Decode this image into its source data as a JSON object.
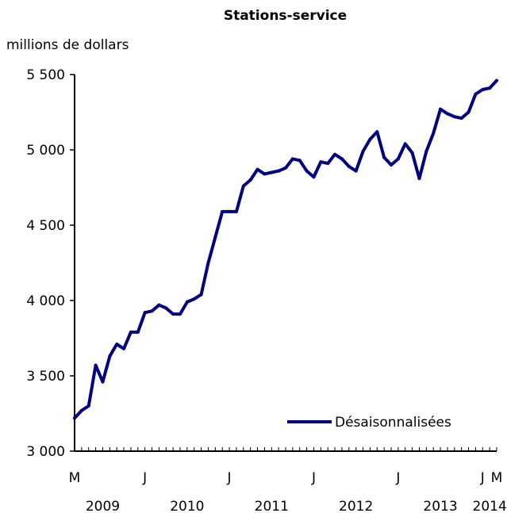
{
  "chart_data": {
    "type": "line",
    "title": "Stations-service",
    "ylabel": "millions de dollars",
    "xlabel": "",
    "ylim": [
      3000,
      5500
    ],
    "yticks": [
      {
        "value": 3000,
        "label": "3 000"
      },
      {
        "value": 3500,
        "label": "3 500"
      },
      {
        "value": 4000,
        "label": "4 000"
      },
      {
        "value": 4500,
        "label": "4 500"
      },
      {
        "value": 5000,
        "label": "5 000"
      },
      {
        "value": 5500,
        "label": "5 500"
      }
    ],
    "x_start": "2009-03",
    "x_end": "2014-03",
    "month_ticks": [
      {
        "month": "2009-03",
        "label": "M"
      },
      {
        "month": "2010-01",
        "label": "J"
      },
      {
        "month": "2011-01",
        "label": "J"
      },
      {
        "month": "2012-01",
        "label": "J"
      },
      {
        "month": "2013-01",
        "label": "J"
      },
      {
        "month": "2014-01",
        "label": "J"
      },
      {
        "month": "2014-03",
        "label": "M"
      }
    ],
    "year_labels": [
      {
        "month": "2009-07",
        "label": "2009"
      },
      {
        "month": "2010-07",
        "label": "2010"
      },
      {
        "month": "2011-07",
        "label": "2011"
      },
      {
        "month": "2012-07",
        "label": "2012"
      },
      {
        "month": "2013-07",
        "label": "2013"
      },
      {
        "month": "2014-02",
        "label": "2014"
      }
    ],
    "legend_position": "bottom-right",
    "grid": false,
    "series": [
      {
        "name": "Désaisonnalisées",
        "color": "#000080",
        "x": [
          "2009-03",
          "2009-04",
          "2009-05",
          "2009-06",
          "2009-07",
          "2009-08",
          "2009-09",
          "2009-10",
          "2009-11",
          "2009-12",
          "2010-01",
          "2010-02",
          "2010-03",
          "2010-04",
          "2010-05",
          "2010-06",
          "2010-07",
          "2010-08",
          "2010-09",
          "2010-10",
          "2010-11",
          "2010-12",
          "2011-01",
          "2011-02",
          "2011-03",
          "2011-04",
          "2011-05",
          "2011-06",
          "2011-07",
          "2011-08",
          "2011-09",
          "2011-10",
          "2011-11",
          "2011-12",
          "2012-01",
          "2012-02",
          "2012-03",
          "2012-04",
          "2012-05",
          "2012-06",
          "2012-07",
          "2012-08",
          "2012-09",
          "2012-10",
          "2012-11",
          "2012-12",
          "2013-01",
          "2013-02",
          "2013-03",
          "2013-04",
          "2013-05",
          "2013-06",
          "2013-07",
          "2013-08",
          "2013-09",
          "2013-10",
          "2013-11",
          "2013-12",
          "2014-01",
          "2014-02",
          "2014-03"
        ],
        "values": [
          3220,
          3270,
          3300,
          3570,
          3460,
          3630,
          3710,
          3680,
          3790,
          3790,
          3920,
          3930,
          3970,
          3950,
          3910,
          3910,
          3990,
          4010,
          4040,
          4250,
          4420,
          4590,
          4590,
          4590,
          4760,
          4800,
          4870,
          4840,
          4850,
          4860,
          4880,
          4940,
          4930,
          4860,
          4820,
          4920,
          4910,
          4970,
          4940,
          4890,
          4860,
          4990,
          5070,
          5120,
          4950,
          4900,
          4940,
          5040,
          4980,
          4810,
          4990,
          5110,
          5270,
          5240,
          5220,
          5210,
          5250,
          5370,
          5400,
          5410,
          5460
        ]
      }
    ]
  }
}
